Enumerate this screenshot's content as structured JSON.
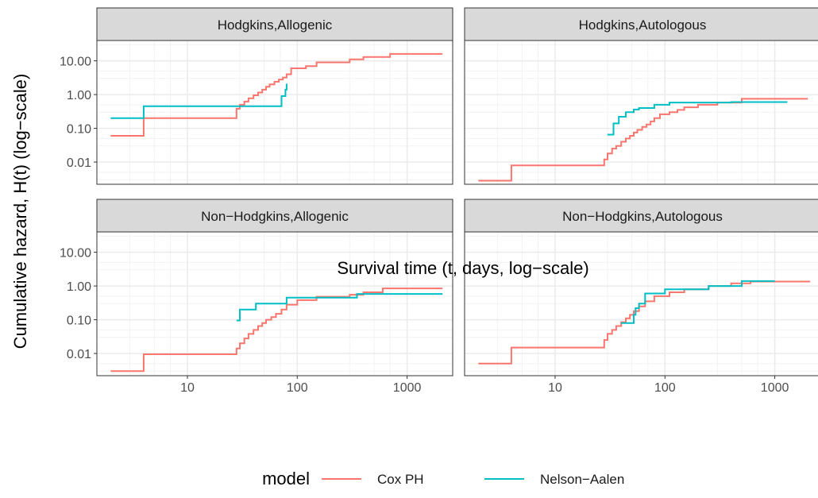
{
  "chart_data": {
    "type": "line",
    "xlabel": "Survival time (t, days, log−scale)",
    "ylabel": "Cumulative hazard, H(t) (log−scale)",
    "x_scale": "log10",
    "y_scale": "log10",
    "xlim": [
      1.5,
      2600
    ],
    "ylim": [
      0.0022,
      40
    ],
    "x_ticks": [
      10,
      100,
      1000
    ],
    "x_tick_labels": [
      "10",
      "100",
      "1000"
    ],
    "y_ticks": [
      0.01,
      0.1,
      1,
      10
    ],
    "y_tick_labels": [
      "0.01",
      "0.10",
      "1.00",
      "10.00"
    ],
    "grid": true,
    "legend": {
      "title": "model",
      "position": "bottom",
      "entries": [
        {
          "name": "Cox PH",
          "color": "#F8766D"
        },
        {
          "name": "Nelson−Aalen",
          "color": "#00BFC4"
        }
      ]
    },
    "panels": [
      {
        "strip": "Hodgkins,Allogenic",
        "row": 0,
        "col": 0,
        "series": [
          {
            "name": "Cox PH",
            "points": [
              [
                2,
                0.06
              ],
              [
                4,
                0.06
              ],
              [
                4,
                0.2
              ],
              [
                28,
                0.2
              ],
              [
                28,
                0.38
              ],
              [
                30,
                0.38
              ],
              [
                30,
                0.5
              ],
              [
                33,
                0.5
              ],
              [
                33,
                0.62
              ],
              [
                36,
                0.62
              ],
              [
                36,
                0.78
              ],
              [
                40,
                0.78
              ],
              [
                40,
                0.95
              ],
              [
                44,
                0.95
              ],
              [
                44,
                1.15
              ],
              [
                48,
                1.15
              ],
              [
                48,
                1.4
              ],
              [
                52,
                1.4
              ],
              [
                52,
                1.7
              ],
              [
                56,
                1.7
              ],
              [
                56,
                2.0
              ],
              [
                62,
                2.0
              ],
              [
                62,
                2.4
              ],
              [
                68,
                2.4
              ],
              [
                68,
                2.8
              ],
              [
                74,
                2.8
              ],
              [
                74,
                3.2
              ],
              [
                80,
                3.2
              ],
              [
                80,
                4.0
              ],
              [
                88,
                4.0
              ],
              [
                88,
                6.0
              ],
              [
                120,
                6.0
              ],
              [
                120,
                7.0
              ],
              [
                150,
                7.0
              ],
              [
                150,
                9.0
              ],
              [
                300,
                9.0
              ],
              [
                300,
                11.0
              ],
              [
                400,
                11.0
              ],
              [
                400,
                13.0
              ],
              [
                700,
                13.0
              ],
              [
                700,
                16.0
              ],
              [
                2100,
                16.0
              ]
            ]
          },
          {
            "name": "Nelson−Aalen",
            "points": [
              [
                2,
                0.2
              ],
              [
                4,
                0.2
              ],
              [
                4,
                0.45
              ],
              [
                72,
                0.45
              ],
              [
                72,
                0.9
              ],
              [
                78,
                0.9
              ],
              [
                78,
                1.4
              ],
              [
                80,
                1.4
              ],
              [
                80,
                2.1
              ]
            ]
          }
        ]
      },
      {
        "strip": "Hodgkins,Autologous",
        "row": 0,
        "col": 1,
        "series": [
          {
            "name": "Cox PH",
            "points": [
              [
                2,
                0.0028
              ],
              [
                4,
                0.0028
              ],
              [
                4,
                0.008
              ],
              [
                28,
                0.008
              ],
              [
                28,
                0.012
              ],
              [
                30,
                0.012
              ],
              [
                30,
                0.018
              ],
              [
                33,
                0.018
              ],
              [
                33,
                0.025
              ],
              [
                36,
                0.025
              ],
              [
                36,
                0.03
              ],
              [
                40,
                0.03
              ],
              [
                40,
                0.04
              ],
              [
                44,
                0.04
              ],
              [
                44,
                0.05
              ],
              [
                48,
                0.05
              ],
              [
                48,
                0.06
              ],
              [
                52,
                0.06
              ],
              [
                52,
                0.075
              ],
              [
                56,
                0.075
              ],
              [
                56,
                0.09
              ],
              [
                62,
                0.09
              ],
              [
                62,
                0.11
              ],
              [
                68,
                0.11
              ],
              [
                68,
                0.13
              ],
              [
                74,
                0.13
              ],
              [
                74,
                0.16
              ],
              [
                80,
                0.16
              ],
              [
                80,
                0.2
              ],
              [
                90,
                0.2
              ],
              [
                90,
                0.26
              ],
              [
                110,
                0.26
              ],
              [
                110,
                0.3
              ],
              [
                130,
                0.3
              ],
              [
                130,
                0.35
              ],
              [
                150,
                0.35
              ],
              [
                150,
                0.42
              ],
              [
                200,
                0.42
              ],
              [
                200,
                0.5
              ],
              [
                300,
                0.5
              ],
              [
                300,
                0.58
              ],
              [
                500,
                0.58
              ],
              [
                500,
                0.75
              ],
              [
                2000,
                0.75
              ]
            ]
          },
          {
            "name": "Nelson−Aalen",
            "points": [
              [
                30,
                0.065
              ],
              [
                34,
                0.065
              ],
              [
                34,
                0.14
              ],
              [
                38,
                0.14
              ],
              [
                38,
                0.22
              ],
              [
                44,
                0.22
              ],
              [
                44,
                0.3
              ],
              [
                52,
                0.3
              ],
              [
                52,
                0.36
              ],
              [
                58,
                0.36
              ],
              [
                58,
                0.4
              ],
              [
                80,
                0.4
              ],
              [
                80,
                0.5
              ],
              [
                110,
                0.5
              ],
              [
                110,
                0.58
              ],
              [
                400,
                0.58
              ],
              [
                400,
                0.6
              ],
              [
                1300,
                0.6
              ]
            ]
          }
        ]
      },
      {
        "strip": "Non−Hodgkins,Allogenic",
        "row": 1,
        "col": 0,
        "series": [
          {
            "name": "Cox PH",
            "points": [
              [
                2,
                0.003
              ],
              [
                4,
                0.003
              ],
              [
                4,
                0.0095
              ],
              [
                28,
                0.0095
              ],
              [
                28,
                0.014
              ],
              [
                30,
                0.014
              ],
              [
                30,
                0.02
              ],
              [
                33,
                0.02
              ],
              [
                33,
                0.028
              ],
              [
                36,
                0.028
              ],
              [
                36,
                0.038
              ],
              [
                40,
                0.038
              ],
              [
                40,
                0.05
              ],
              [
                44,
                0.05
              ],
              [
                44,
                0.065
              ],
              [
                48,
                0.065
              ],
              [
                48,
                0.08
              ],
              [
                52,
                0.08
              ],
              [
                52,
                0.1
              ],
              [
                58,
                0.1
              ],
              [
                58,
                0.12
              ],
              [
                64,
                0.12
              ],
              [
                64,
                0.15
              ],
              [
                72,
                0.15
              ],
              [
                72,
                0.2
              ],
              [
                80,
                0.2
              ],
              [
                80,
                0.28
              ],
              [
                100,
                0.28
              ],
              [
                100,
                0.38
              ],
              [
                150,
                0.38
              ],
              [
                150,
                0.48
              ],
              [
                300,
                0.48
              ],
              [
                300,
                0.55
              ],
              [
                400,
                0.55
              ],
              [
                400,
                0.65
              ],
              [
                600,
                0.65
              ],
              [
                600,
                0.85
              ],
              [
                2100,
                0.85
              ]
            ]
          },
          {
            "name": "Nelson−Aalen",
            "points": [
              [
                28,
                0.095
              ],
              [
                30,
                0.095
              ],
              [
                30,
                0.2
              ],
              [
                42,
                0.2
              ],
              [
                42,
                0.3
              ],
              [
                80,
                0.3
              ],
              [
                80,
                0.45
              ],
              [
                350,
                0.45
              ],
              [
                350,
                0.58
              ],
              [
                2100,
                0.58
              ]
            ]
          }
        ]
      },
      {
        "strip": "Non−Hodgkins,Autologous",
        "row": 1,
        "col": 1,
        "series": [
          {
            "name": "Cox PH",
            "points": [
              [
                2,
                0.005
              ],
              [
                4,
                0.005
              ],
              [
                4,
                0.015
              ],
              [
                28,
                0.015
              ],
              [
                28,
                0.025
              ],
              [
                30,
                0.025
              ],
              [
                30,
                0.038
              ],
              [
                33,
                0.038
              ],
              [
                33,
                0.05
              ],
              [
                36,
                0.05
              ],
              [
                36,
                0.065
              ],
              [
                40,
                0.065
              ],
              [
                40,
                0.085
              ],
              [
                44,
                0.085
              ],
              [
                44,
                0.11
              ],
              [
                48,
                0.11
              ],
              [
                48,
                0.14
              ],
              [
                52,
                0.14
              ],
              [
                52,
                0.18
              ],
              [
                58,
                0.18
              ],
              [
                58,
                0.25
              ],
              [
                66,
                0.25
              ],
              [
                66,
                0.35
              ],
              [
                80,
                0.35
              ],
              [
                80,
                0.5
              ],
              [
                110,
                0.5
              ],
              [
                110,
                0.65
              ],
              [
                150,
                0.65
              ],
              [
                150,
                0.8
              ],
              [
                250,
                0.8
              ],
              [
                250,
                1.0
              ],
              [
                400,
                1.0
              ],
              [
                400,
                1.2
              ],
              [
                600,
                1.2
              ],
              [
                600,
                1.35
              ],
              [
                2100,
                1.35
              ]
            ]
          },
          {
            "name": "Nelson−Aalen",
            "points": [
              [
                40,
                0.08
              ],
              [
                52,
                0.08
              ],
              [
                52,
                0.14
              ],
              [
                54,
                0.14
              ],
              [
                54,
                0.22
              ],
              [
                58,
                0.22
              ],
              [
                58,
                0.3
              ],
              [
                66,
                0.3
              ],
              [
                66,
                0.6
              ],
              [
                100,
                0.6
              ],
              [
                100,
                0.8
              ],
              [
                250,
                0.8
              ],
              [
                250,
                1.0
              ],
              [
                500,
                1.0
              ],
              [
                500,
                1.4
              ],
              [
                1000,
                1.4
              ]
            ]
          }
        ]
      }
    ]
  }
}
